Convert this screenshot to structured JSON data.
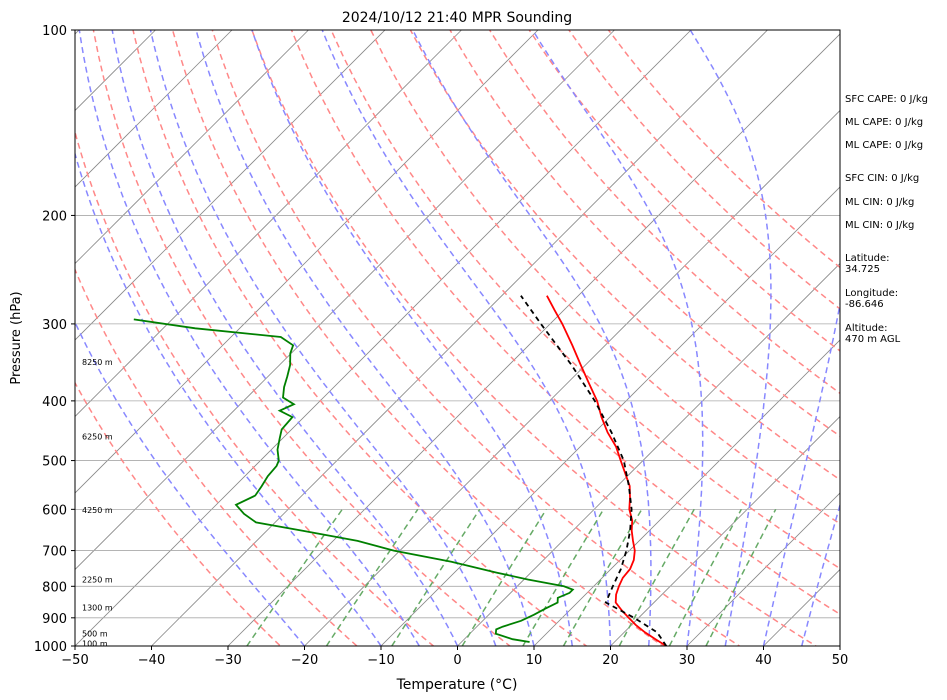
{
  "chart_data": {
    "type": "line",
    "title": "2024/10/12 21:40 MPR Sounding",
    "xlabel": "Temperature (°C)",
    "ylabel": "Pressure (hPa)",
    "xlim": [
      -50,
      50
    ],
    "ylim": [
      1000,
      100
    ],
    "y_scale": "log",
    "skew_degrees": 45,
    "grid": true,
    "x_ticks": [
      "−50",
      "−40",
      "−30",
      "−20",
      "−10",
      "0",
      "10",
      "20",
      "30",
      "40",
      "50"
    ],
    "x_tick_values": [
      -50,
      -40,
      -30,
      -20,
      -10,
      0,
      10,
      20,
      30,
      40,
      50
    ],
    "y_ticks": [
      "100",
      "200",
      "300",
      "400",
      "500",
      "600",
      "700",
      "800",
      "900",
      "1000"
    ],
    "y_tick_values": [
      100,
      200,
      300,
      400,
      500,
      600,
      700,
      800,
      900,
      1000
    ],
    "height_labels": [
      {
        "label": "100 m",
        "p": 990
      },
      {
        "label": "500 m",
        "p": 955
      },
      {
        "label": "1300 m",
        "p": 866
      },
      {
        "label": "2250 m",
        "p": 780
      },
      {
        "label": "4250 m",
        "p": 602
      },
      {
        "label": "6250 m",
        "p": 457
      },
      {
        "label": "8250 m",
        "p": 346
      }
    ],
    "series": [
      {
        "role": "temperature",
        "color": "#ff0000",
        "points": [
          [
            1000,
            27.3
          ],
          [
            975,
            25.0
          ],
          [
            950,
            22.7
          ],
          [
            925,
            20.6
          ],
          [
            900,
            18.7
          ],
          [
            875,
            16.8
          ],
          [
            850,
            15.0
          ],
          [
            825,
            14.0
          ],
          [
            800,
            13.3
          ],
          [
            775,
            12.7
          ],
          [
            750,
            12.5
          ],
          [
            725,
            11.8
          ],
          [
            700,
            10.7
          ],
          [
            675,
            9.2
          ],
          [
            650,
            7.7
          ],
          [
            625,
            6.4
          ],
          [
            600,
            4.6
          ],
          [
            575,
            3.2
          ],
          [
            550,
            1.6
          ],
          [
            525,
            -0.6
          ],
          [
            500,
            -2.9
          ],
          [
            475,
            -5.3
          ],
          [
            450,
            -8.3
          ],
          [
            425,
            -11.1
          ],
          [
            400,
            -13.8
          ],
          [
            375,
            -17.1
          ],
          [
            350,
            -20.6
          ],
          [
            325,
            -24.3
          ],
          [
            300,
            -28.4
          ],
          [
            285,
            -31.2
          ],
          [
            270,
            -34.1
          ]
        ]
      },
      {
        "role": "dewpoint",
        "color": "#008000",
        "points": [
          [
            985,
            8.9
          ],
          [
            975,
            6.3
          ],
          [
            955,
            3.4
          ],
          [
            940,
            2.9
          ],
          [
            930,
            3.4
          ],
          [
            910,
            5.0
          ],
          [
            890,
            5.9
          ],
          [
            870,
            6.6
          ],
          [
            850,
            7.4
          ],
          [
            835,
            6.8
          ],
          [
            820,
            7.7
          ],
          [
            810,
            7.7
          ],
          [
            800,
            6.1
          ],
          [
            780,
            0.5
          ],
          [
            760,
            -4.5
          ],
          [
            730,
            -11.8
          ],
          [
            700,
            -20.8
          ],
          [
            675,
            -26.8
          ],
          [
            650,
            -35.3
          ],
          [
            630,
            -42.5
          ],
          [
            610,
            -45.2
          ],
          [
            590,
            -47.4
          ],
          [
            570,
            -46.1
          ],
          [
            550,
            -46.5
          ],
          [
            530,
            -47.0
          ],
          [
            510,
            -47.2
          ],
          [
            500,
            -47.6
          ],
          [
            480,
            -49.2
          ],
          [
            460,
            -50.4
          ],
          [
            445,
            -51.3
          ],
          [
            425,
            -51.5
          ],
          [
            415,
            -54.0
          ],
          [
            405,
            -53.0
          ],
          [
            395,
            -55.3
          ],
          [
            380,
            -56.5
          ],
          [
            365,
            -57.5
          ],
          [
            350,
            -58.6
          ],
          [
            335,
            -60.1
          ],
          [
            325,
            -60.8
          ],
          [
            315,
            -63.5
          ],
          [
            305,
            -75.8
          ],
          [
            295,
            -85.0
          ]
        ]
      },
      {
        "role": "parcel",
        "color": "#000000",
        "dash": "dashed",
        "points": [
          [
            1000,
            27.3
          ],
          [
            950,
            24.3
          ],
          [
            900,
            19.4
          ],
          [
            850,
            13.7
          ],
          [
            800,
            12.5
          ],
          [
            750,
            11.3
          ],
          [
            700,
            9.6
          ],
          [
            650,
            7.5
          ],
          [
            600,
            4.9
          ],
          [
            550,
            1.5
          ],
          [
            500,
            -2.5
          ],
          [
            450,
            -7.8
          ],
          [
            400,
            -14.1
          ],
          [
            350,
            -21.8
          ],
          [
            300,
            -31.2
          ],
          [
            270,
            -37.5
          ]
        ]
      }
    ],
    "dry_adiabats_theta_k": [
      250,
      260,
      270,
      280,
      290,
      300,
      310,
      320,
      330,
      340,
      350,
      360,
      370,
      380,
      390,
      400,
      410
    ],
    "moist_adiabats_c": [
      -20,
      -10,
      -5,
      0,
      5,
      10,
      15,
      20,
      25,
      30,
      35,
      40,
      45
    ],
    "mixing_ratios_g_kg": [
      0.4,
      1,
      2,
      4,
      7,
      10,
      16,
      24,
      32
    ],
    "line_colors": {
      "dry_adiabat": "#ff8888",
      "moist_adiabat": "#8888ff",
      "mixing_ratio": "#66aa66",
      "isotherm": "#888888",
      "grid": "#aaaaaa"
    }
  },
  "indices": {
    "sfc_cape": "SFC CAPE: 0 J/kg",
    "ml_cape_1": "ML CAPE: 0 J/kg",
    "ml_cape_2": "ML CAPE: 0 J/kg",
    "sfc_cin": "SFC CIN: 0 J/kg",
    "ml_cin_1": "ML CIN: 0 J/kg",
    "ml_cin_2": "ML CIN: 0 J/kg"
  },
  "location": {
    "latitude": "Latitude:\n34.725",
    "longitude": "Longitude:\n-86.646",
    "altitude": "Altitude:\n470 m AGL"
  }
}
